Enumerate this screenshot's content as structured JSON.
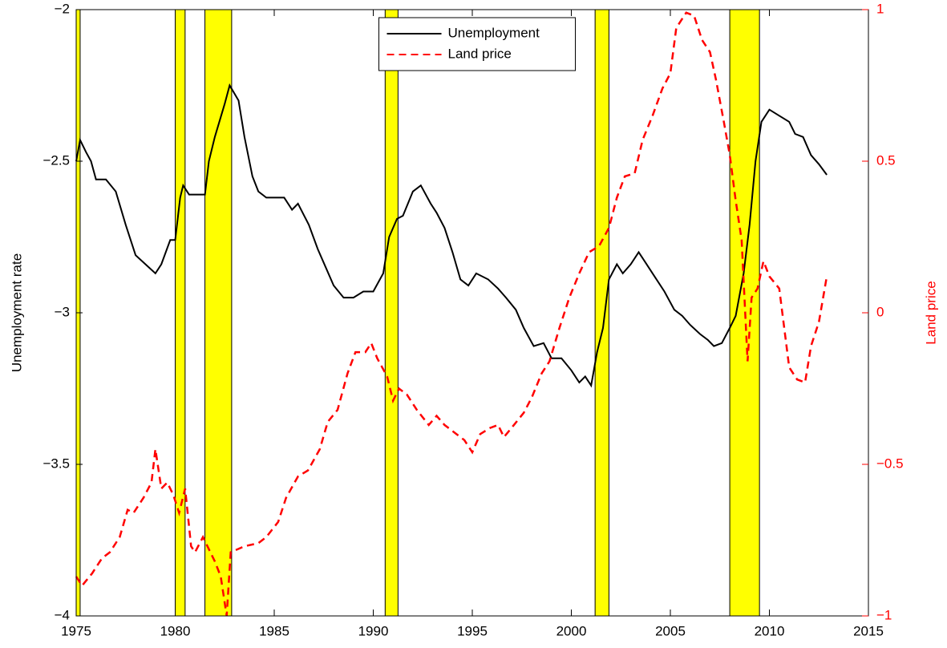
{
  "chart_data": {
    "type": "line",
    "y_label": "Unemployment rate",
    "y2_label": "Land price",
    "xlim": [
      1975,
      2015
    ],
    "xticks": [
      1975,
      1980,
      1985,
      1990,
      1995,
      2000,
      2005,
      2010,
      2015
    ],
    "ylim": [
      -4,
      -2
    ],
    "yticks": [
      {
        "value": -4,
        "label": "−4"
      },
      {
        "value": -3.5,
        "label": "−3.5"
      },
      {
        "value": -3,
        "label": "−3"
      },
      {
        "value": -2.5,
        "label": "−2.5"
      },
      {
        "value": -2,
        "label": "−2"
      }
    ],
    "y2lim": [
      -1,
      1
    ],
    "y2ticks": [
      {
        "value": -1,
        "label": "−1"
      },
      {
        "value": -0.5,
        "label": "−0.5"
      },
      0,
      0.5,
      1
    ],
    "y2_color": "#ff0000",
    "shaded_color": "#ffff00",
    "shaded_regions": [
      [
        1975.0,
        1975.2
      ],
      [
        1980.0,
        1980.5
      ],
      [
        1981.5,
        1982.85
      ],
      [
        1990.6,
        1991.25
      ],
      [
        2001.2,
        2001.9
      ],
      [
        2008.0,
        2009.5
      ]
    ],
    "legend": "upper center",
    "series": [
      {
        "name": "Unemployment",
        "color": "#000000",
        "dash": "solid",
        "x": [
          1975.0,
          1975.2,
          1975.5,
          1975.75,
          1976.0,
          1976.5,
          1977.0,
          1977.5,
          1978.0,
          1978.5,
          1979.0,
          1979.3,
          1979.75,
          1980.0,
          1980.25,
          1980.4,
          1980.7,
          1981.5,
          1981.7,
          1982.0,
          1982.5,
          1982.75,
          1983.2,
          1983.5,
          1983.9,
          1984.2,
          1984.6,
          1985.5,
          1985.9,
          1986.2,
          1986.75,
          1987.2,
          1987.6,
          1988.0,
          1988.5,
          1989.0,
          1989.5,
          1990.0,
          1990.5,
          1990.8,
          1991.2,
          1991.5,
          1992.0,
          1992.4,
          1992.9,
          1993.2,
          1993.6,
          1994.0,
          1994.4,
          1994.8,
          1995.2,
          1995.8,
          1996.3,
          1996.7,
          1997.2,
          1997.6,
          1998.1,
          1998.6,
          1999.0,
          1999.5,
          2000.0,
          2000.4,
          2000.7,
          2001.0,
          2001.3,
          2001.6,
          2001.9,
          2002.3,
          2002.6,
          2003.0,
          2003.4,
          2003.7,
          2004.2,
          2004.7,
          2005.2,
          2005.6,
          2006.0,
          2006.5,
          2006.9,
          2007.2,
          2007.6,
          2008.0,
          2008.3,
          2008.7,
          2009.0,
          2009.3,
          2009.6,
          2010.0,
          2010.5,
          2011.0,
          2011.3,
          2011.7,
          2012.1,
          2012.5,
          2012.9
        ],
        "values": [
          -2.5,
          -2.43,
          -2.47,
          -2.5,
          -2.56,
          -2.56,
          -2.6,
          -2.71,
          -2.81,
          -2.84,
          -2.87,
          -2.84,
          -2.76,
          -2.76,
          -2.62,
          -2.58,
          -2.61,
          -2.61,
          -2.5,
          -2.42,
          -2.31,
          -2.25,
          -2.3,
          -2.42,
          -2.55,
          -2.6,
          -2.62,
          -2.62,
          -2.66,
          -2.64,
          -2.71,
          -2.79,
          -2.85,
          -2.91,
          -2.95,
          -2.95,
          -2.93,
          -2.93,
          -2.87,
          -2.75,
          -2.69,
          -2.68,
          -2.6,
          -2.58,
          -2.64,
          -2.67,
          -2.72,
          -2.8,
          -2.89,
          -2.91,
          -2.87,
          -2.89,
          -2.92,
          -2.95,
          -2.99,
          -3.05,
          -3.11,
          -3.1,
          -3.15,
          -3.15,
          -3.19,
          -3.23,
          -3.21,
          -3.24,
          -3.13,
          -3.05,
          -2.89,
          -2.84,
          -2.87,
          -2.84,
          -2.8,
          -2.83,
          -2.88,
          -2.93,
          -2.99,
          -3.01,
          -3.04,
          -3.07,
          -3.09,
          -3.11,
          -3.1,
          -3.05,
          -3.01,
          -2.87,
          -2.71,
          -2.5,
          -2.37,
          -2.33,
          -2.35,
          -2.37,
          -2.41,
          -2.42,
          -2.48,
          -2.51,
          -2.545
        ]
      },
      {
        "name": "Land price",
        "color": "#ff0000",
        "dash": "dashed",
        "axis": "y2",
        "x": [
          1975.0,
          1975.3,
          1975.8,
          1976.3,
          1976.7,
          1977.2,
          1977.6,
          1977.9,
          1978.4,
          1978.8,
          1979.0,
          1979.3,
          1979.6,
          1979.9,
          1980.2,
          1980.5,
          1980.8,
          1981.0,
          1981.4,
          1981.7,
          1982.0,
          1982.3,
          1982.6,
          1982.8,
          1983.5,
          1984.2,
          1984.6,
          1985.2,
          1985.6,
          1986.2,
          1986.7,
          1987.3,
          1987.7,
          1988.2,
          1988.7,
          1989.1,
          1989.6,
          1989.9,
          1990.2,
          1990.7,
          1991.0,
          1991.3,
          1991.7,
          1992.2,
          1992.8,
          1993.2,
          1993.6,
          1994.2,
          1994.6,
          1995.0,
          1995.4,
          1995.9,
          1996.3,
          1996.6,
          1997.1,
          1997.6,
          1998.0,
          1998.5,
          1998.9,
          1999.4,
          1999.9,
          2000.4,
          2000.9,
          2001.4,
          2001.9,
          2002.3,
          2002.7,
          2003.2,
          2003.6,
          2004.1,
          2004.6,
          2005.0,
          2005.3,
          2005.8,
          2006.2,
          2006.6,
          2007.0,
          2007.3,
          2007.7,
          2008.0,
          2008.3,
          2008.6,
          2008.9,
          2009.1,
          2009.4,
          2009.7,
          2010.0,
          2010.5,
          2011.0,
          2011.4,
          2011.8,
          2012.1,
          2012.5,
          2012.9
        ],
        "values": [
          -0.87,
          -0.9,
          -0.86,
          -0.81,
          -0.79,
          -0.74,
          -0.65,
          -0.66,
          -0.61,
          -0.56,
          -0.45,
          -0.58,
          -0.56,
          -0.6,
          -0.66,
          -0.58,
          -0.77,
          -0.79,
          -0.74,
          -0.78,
          -0.82,
          -0.87,
          -1.0,
          -0.79,
          -0.77,
          -0.76,
          -0.74,
          -0.69,
          -0.61,
          -0.54,
          -0.52,
          -0.45,
          -0.36,
          -0.32,
          -0.2,
          -0.13,
          -0.13,
          -0.1,
          -0.15,
          -0.21,
          -0.29,
          -0.25,
          -0.27,
          -0.32,
          -0.37,
          -0.34,
          -0.37,
          -0.4,
          -0.42,
          -0.46,
          -0.4,
          -0.38,
          -0.37,
          -0.41,
          -0.37,
          -0.33,
          -0.28,
          -0.2,
          -0.16,
          -0.05,
          0.05,
          0.13,
          0.2,
          0.22,
          0.28,
          0.38,
          0.45,
          0.46,
          0.57,
          0.65,
          0.74,
          0.79,
          0.94,
          0.99,
          0.98,
          0.9,
          0.86,
          0.77,
          0.63,
          0.52,
          0.37,
          0.24,
          -0.16,
          0.05,
          0.08,
          0.17,
          0.12,
          0.08,
          -0.18,
          -0.22,
          -0.23,
          -0.11,
          -0.03,
          0.12
        ]
      }
    ]
  }
}
